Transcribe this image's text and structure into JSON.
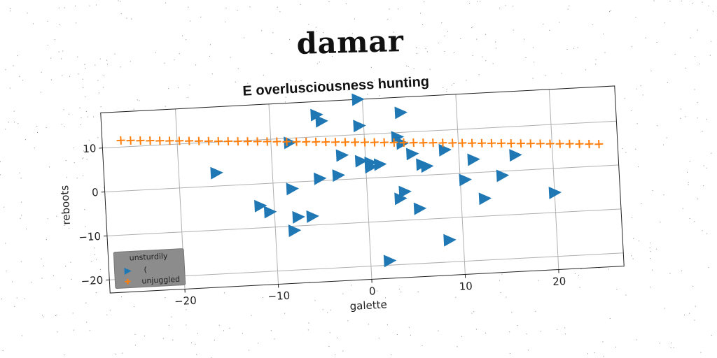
{
  "page_title": "damar",
  "chart_data": {
    "type": "scatter",
    "title": "E overlusciousness hunting",
    "xlabel": "galette",
    "ylabel": "reboots",
    "xlim": [
      -28,
      27
    ],
    "ylim": [
      -23,
      18
    ],
    "xticks": [
      -20,
      -10,
      0,
      10,
      20
    ],
    "yticks": [
      -20,
      -10,
      0,
      10
    ],
    "xtick_labels": [
      "−20",
      "−10",
      "0",
      "10",
      "20"
    ],
    "ytick_labels": [
      "−20",
      "−10",
      "0",
      "10"
    ],
    "grid": true,
    "rotation_deg": -3,
    "legend": {
      "title": "unsturdily",
      "placement": "lower-left",
      "entries": [
        "(",
        "unjuggled"
      ]
    },
    "series": [
      {
        "name": "(",
        "marker": "triangle-right",
        "color": "#1f77b4",
        "points": [
          [
            -16,
            3
          ],
          [
            -11.5,
            -5
          ],
          [
            -10.5,
            -6.5
          ],
          [
            -8,
            9
          ],
          [
            -8,
            -1.5
          ],
          [
            -7.5,
            -8
          ],
          [
            -8,
            -11
          ],
          [
            -6,
            -8
          ],
          [
            -5,
            0.5
          ],
          [
            -5,
            15
          ],
          [
            -4.5,
            13.5
          ],
          [
            -3,
            1
          ],
          [
            -2.5,
            5.5
          ],
          [
            -0.5,
            12
          ],
          [
            -0.5,
            18
          ],
          [
            -0.5,
            4
          ],
          [
            0.5,
            3.5
          ],
          [
            0.5,
            2.5
          ],
          [
            1.5,
            3
          ],
          [
            2,
            -19
          ],
          [
            3.5,
            9
          ],
          [
            3.5,
            -5
          ],
          [
            4,
            -3.5
          ],
          [
            4,
            7.5
          ],
          [
            4,
            14.5
          ],
          [
            5,
            5
          ],
          [
            5.5,
            -7.5
          ],
          [
            6,
            2.5
          ],
          [
            6.5,
            2
          ],
          [
            8.5,
            5.5
          ],
          [
            8.5,
            -15
          ],
          [
            10.5,
            -1.5
          ],
          [
            11.5,
            3
          ],
          [
            12.5,
            -6
          ],
          [
            14.5,
            -1
          ],
          [
            16,
            3.5
          ],
          [
            20,
            -5.5
          ]
        ]
      },
      {
        "name": "unjuggled",
        "marker": "plus",
        "color": "#ff7f0e",
        "x_start": -26,
        "x_end": 25,
        "y_start": 11.5,
        "y_end": 5,
        "count": 50
      }
    ]
  }
}
